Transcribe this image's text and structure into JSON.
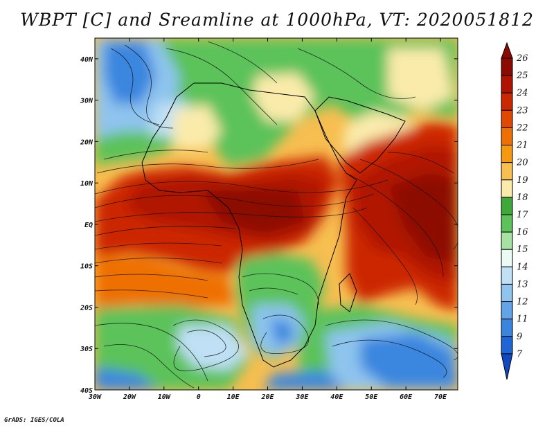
{
  "title": "WBPT [C] and Sreamline at 1000hPa, VT: 2020051812",
  "credit": "GrADS: IGES/COLA",
  "map": {
    "lon_ticks": [
      "30W",
      "20W",
      "10W",
      "0",
      "10E",
      "20E",
      "30E",
      "40E",
      "50E",
      "60E",
      "70E"
    ],
    "lat_ticks": [
      "40N",
      "30N",
      "20N",
      "10N",
      "EQ",
      "10S",
      "20S",
      "30S",
      "40S"
    ],
    "lon_range": [
      -30,
      75
    ],
    "lat_range": [
      -40,
      45
    ]
  },
  "colorbar": {
    "levels": [
      "26",
      "25",
      "24",
      "23",
      "22",
      "21",
      "20",
      "19",
      "18",
      "17",
      "16",
      "15",
      "14",
      "13",
      "12",
      "11",
      "9",
      "7"
    ],
    "colors": [
      "#8c0a00",
      "#b01400",
      "#cc2800",
      "#e04a00",
      "#ee7000",
      "#f59a10",
      "#f7be50",
      "#faebab",
      "#3ea838",
      "#5cc25a",
      "#a6e2a2",
      "#ecfaf5",
      "#bfe0f5",
      "#8ec4ee",
      "#62a4e8",
      "#3a86df",
      "#1e66d6",
      "#1048c2"
    ]
  }
}
